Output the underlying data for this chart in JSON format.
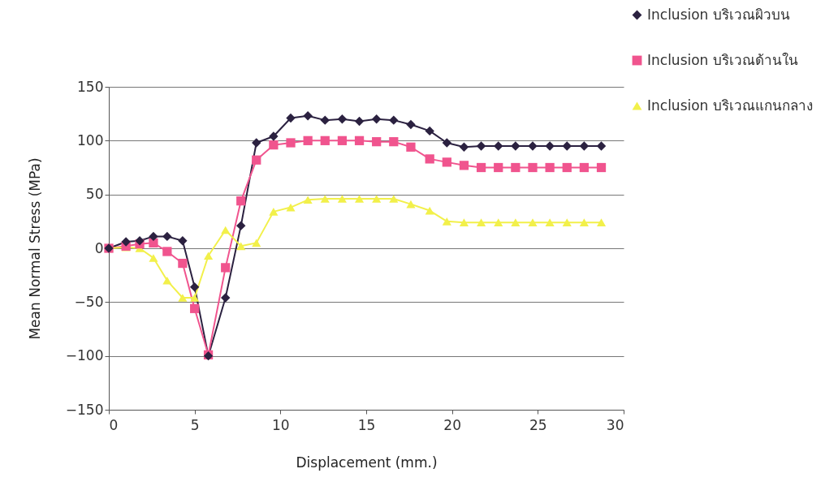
{
  "chart_data": {
    "type": "line",
    "xlabel": "Displacement (mm.)",
    "ylabel": "Mean Normal Stress (MPa)",
    "xlim": [
      0,
      30
    ],
    "xticks": [
      0,
      5,
      10,
      15,
      20,
      25,
      30
    ],
    "ylim": [
      -150,
      150
    ],
    "yticks": [
      -150,
      -100,
      -50,
      0,
      50,
      100,
      150
    ],
    "grid": "y",
    "legend": "top right",
    "line_style": "solid",
    "x": [
      0,
      1.0,
      1.8,
      2.6,
      3.4,
      4.3,
      5.0,
      5.8,
      6.8,
      7.7,
      8.6,
      9.6,
      10.6,
      11.6,
      12.6,
      13.6,
      14.6,
      15.6,
      16.6,
      17.6,
      18.7,
      19.7,
      20.7,
      21.7,
      22.7,
      23.7,
      24.7,
      25.7,
      26.7,
      27.7,
      28.7
    ],
    "series": [
      {
        "name": "Inclusion บริเวณผิวบน",
        "color": "#2b2140",
        "marker": "diamond",
        "values": [
          0,
          6,
          7,
          11,
          11,
          7,
          -36,
          -100,
          -46,
          21,
          98,
          104,
          121,
          123,
          119,
          120,
          118,
          120,
          119,
          115,
          109,
          98,
          94,
          95,
          95,
          95,
          95,
          95,
          95,
          95,
          95
        ]
      },
      {
        "name": "Inclusion บริเวณด้านใน",
        "color": "#f0548e",
        "marker": "square",
        "values": [
          0,
          2,
          4,
          5,
          -3,
          -14,
          -56,
          -99,
          -18,
          44,
          82,
          96,
          98,
          100,
          100,
          100,
          100,
          99,
          99,
          94,
          83,
          80,
          77,
          75,
          75,
          75,
          75,
          75,
          75,
          75,
          75
        ]
      },
      {
        "name": "Inclusion บริเวณแกนกลาง",
        "color": "#f2f04a",
        "marker": "triangle",
        "values": [
          0,
          1,
          0,
          -9,
          -30,
          -46,
          -46,
          -7,
          17,
          2,
          5,
          34,
          38,
          45,
          46,
          46,
          46,
          46,
          46,
          41,
          35,
          25,
          24,
          24,
          24,
          24,
          24,
          24,
          24,
          24,
          24
        ]
      }
    ]
  }
}
